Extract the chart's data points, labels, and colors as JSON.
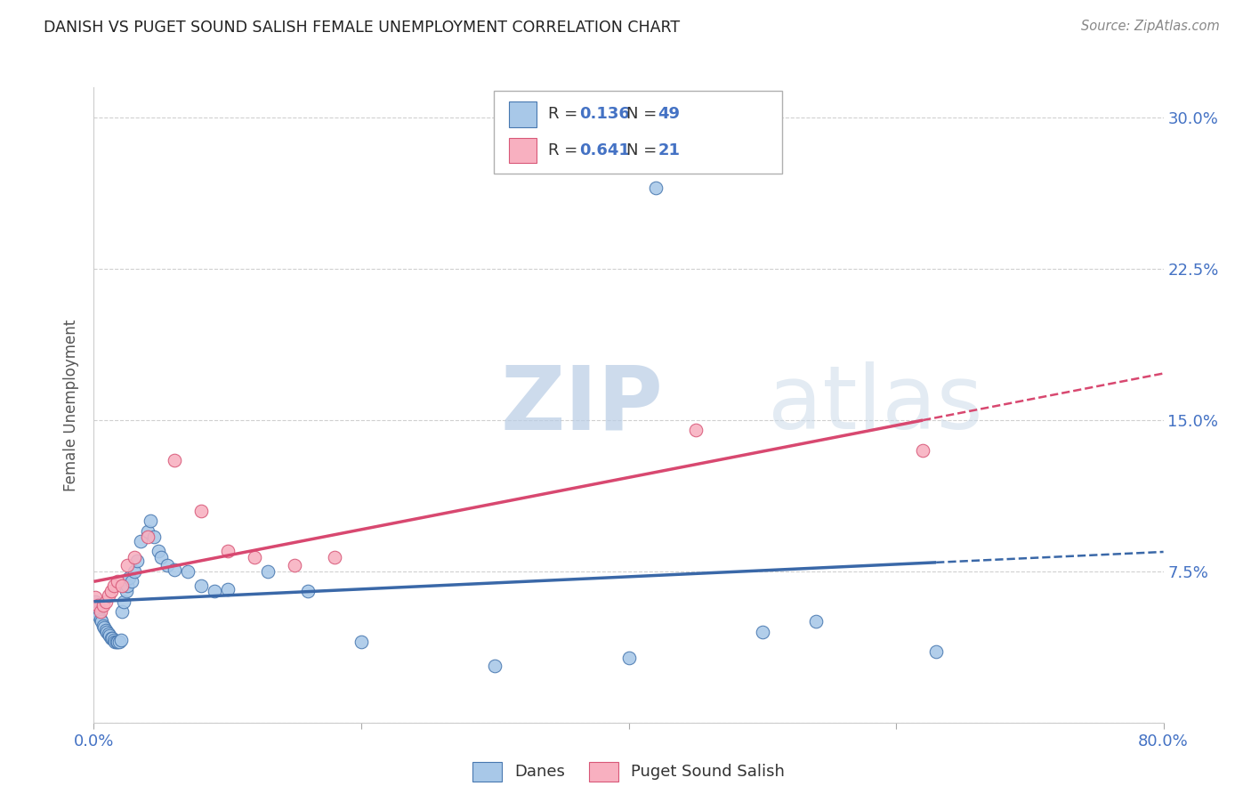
{
  "title": "DANISH VS PUGET SOUND SALISH FEMALE UNEMPLOYMENT CORRELATION CHART",
  "source": "Source: ZipAtlas.com",
  "ylabel": "Female Unemployment",
  "xlim": [
    0.0,
    0.8
  ],
  "ylim": [
    0.0,
    0.315
  ],
  "xticks": [
    0.0,
    0.2,
    0.4,
    0.6,
    0.8
  ],
  "xticklabels": [
    "0.0%",
    "",
    "",
    "",
    "80.0%"
  ],
  "yticks": [
    0.0,
    0.075,
    0.15,
    0.225,
    0.3
  ],
  "yticklabels_right": [
    "",
    "7.5%",
    "15.0%",
    "22.5%",
    "30.0%"
  ],
  "danes_R": "0.136",
  "danes_N": "49",
  "salish_R": "0.641",
  "salish_N": "21",
  "danes_fill": "#a8c8e8",
  "danes_edge": "#4878b0",
  "salish_fill": "#f8b0c0",
  "salish_edge": "#d85878",
  "danes_line": "#3a68a8",
  "salish_line": "#d84870",
  "danes_x": [
    0.001,
    0.002,
    0.003,
    0.004,
    0.005,
    0.006,
    0.007,
    0.008,
    0.009,
    0.01,
    0.011,
    0.012,
    0.013,
    0.014,
    0.015,
    0.016,
    0.017,
    0.018,
    0.019,
    0.02,
    0.021,
    0.022,
    0.024,
    0.025,
    0.026,
    0.028,
    0.03,
    0.032,
    0.035,
    0.04,
    0.042,
    0.045,
    0.048,
    0.05,
    0.055,
    0.06,
    0.07,
    0.08,
    0.09,
    0.1,
    0.13,
    0.16,
    0.2,
    0.3,
    0.4,
    0.42,
    0.5,
    0.54,
    0.63
  ],
  "danes_y": [
    0.06,
    0.056,
    0.055,
    0.053,
    0.051,
    0.05,
    0.048,
    0.047,
    0.046,
    0.045,
    0.044,
    0.043,
    0.042,
    0.042,
    0.041,
    0.04,
    0.04,
    0.04,
    0.04,
    0.041,
    0.055,
    0.06,
    0.065,
    0.068,
    0.072,
    0.07,
    0.075,
    0.08,
    0.09,
    0.095,
    0.1,
    0.092,
    0.085,
    0.082,
    0.078,
    0.076,
    0.075,
    0.068,
    0.065,
    0.066,
    0.075,
    0.065,
    0.04,
    0.028,
    0.032,
    0.265,
    0.045,
    0.05,
    0.035
  ],
  "salish_x": [
    0.001,
    0.003,
    0.005,
    0.007,
    0.009,
    0.011,
    0.013,
    0.015,
    0.018,
    0.021,
    0.025,
    0.03,
    0.04,
    0.06,
    0.08,
    0.1,
    0.12,
    0.15,
    0.18,
    0.45,
    0.62
  ],
  "salish_y": [
    0.062,
    0.058,
    0.055,
    0.058,
    0.06,
    0.063,
    0.065,
    0.068,
    0.07,
    0.068,
    0.078,
    0.082,
    0.092,
    0.13,
    0.105,
    0.085,
    0.082,
    0.078,
    0.082,
    0.145,
    0.135
  ],
  "watermark_text": "ZIPatlas",
  "bg_color": "#ffffff",
  "grid_color": "#d0d0d0",
  "tick_color": "#4472c4",
  "title_color": "#222222"
}
